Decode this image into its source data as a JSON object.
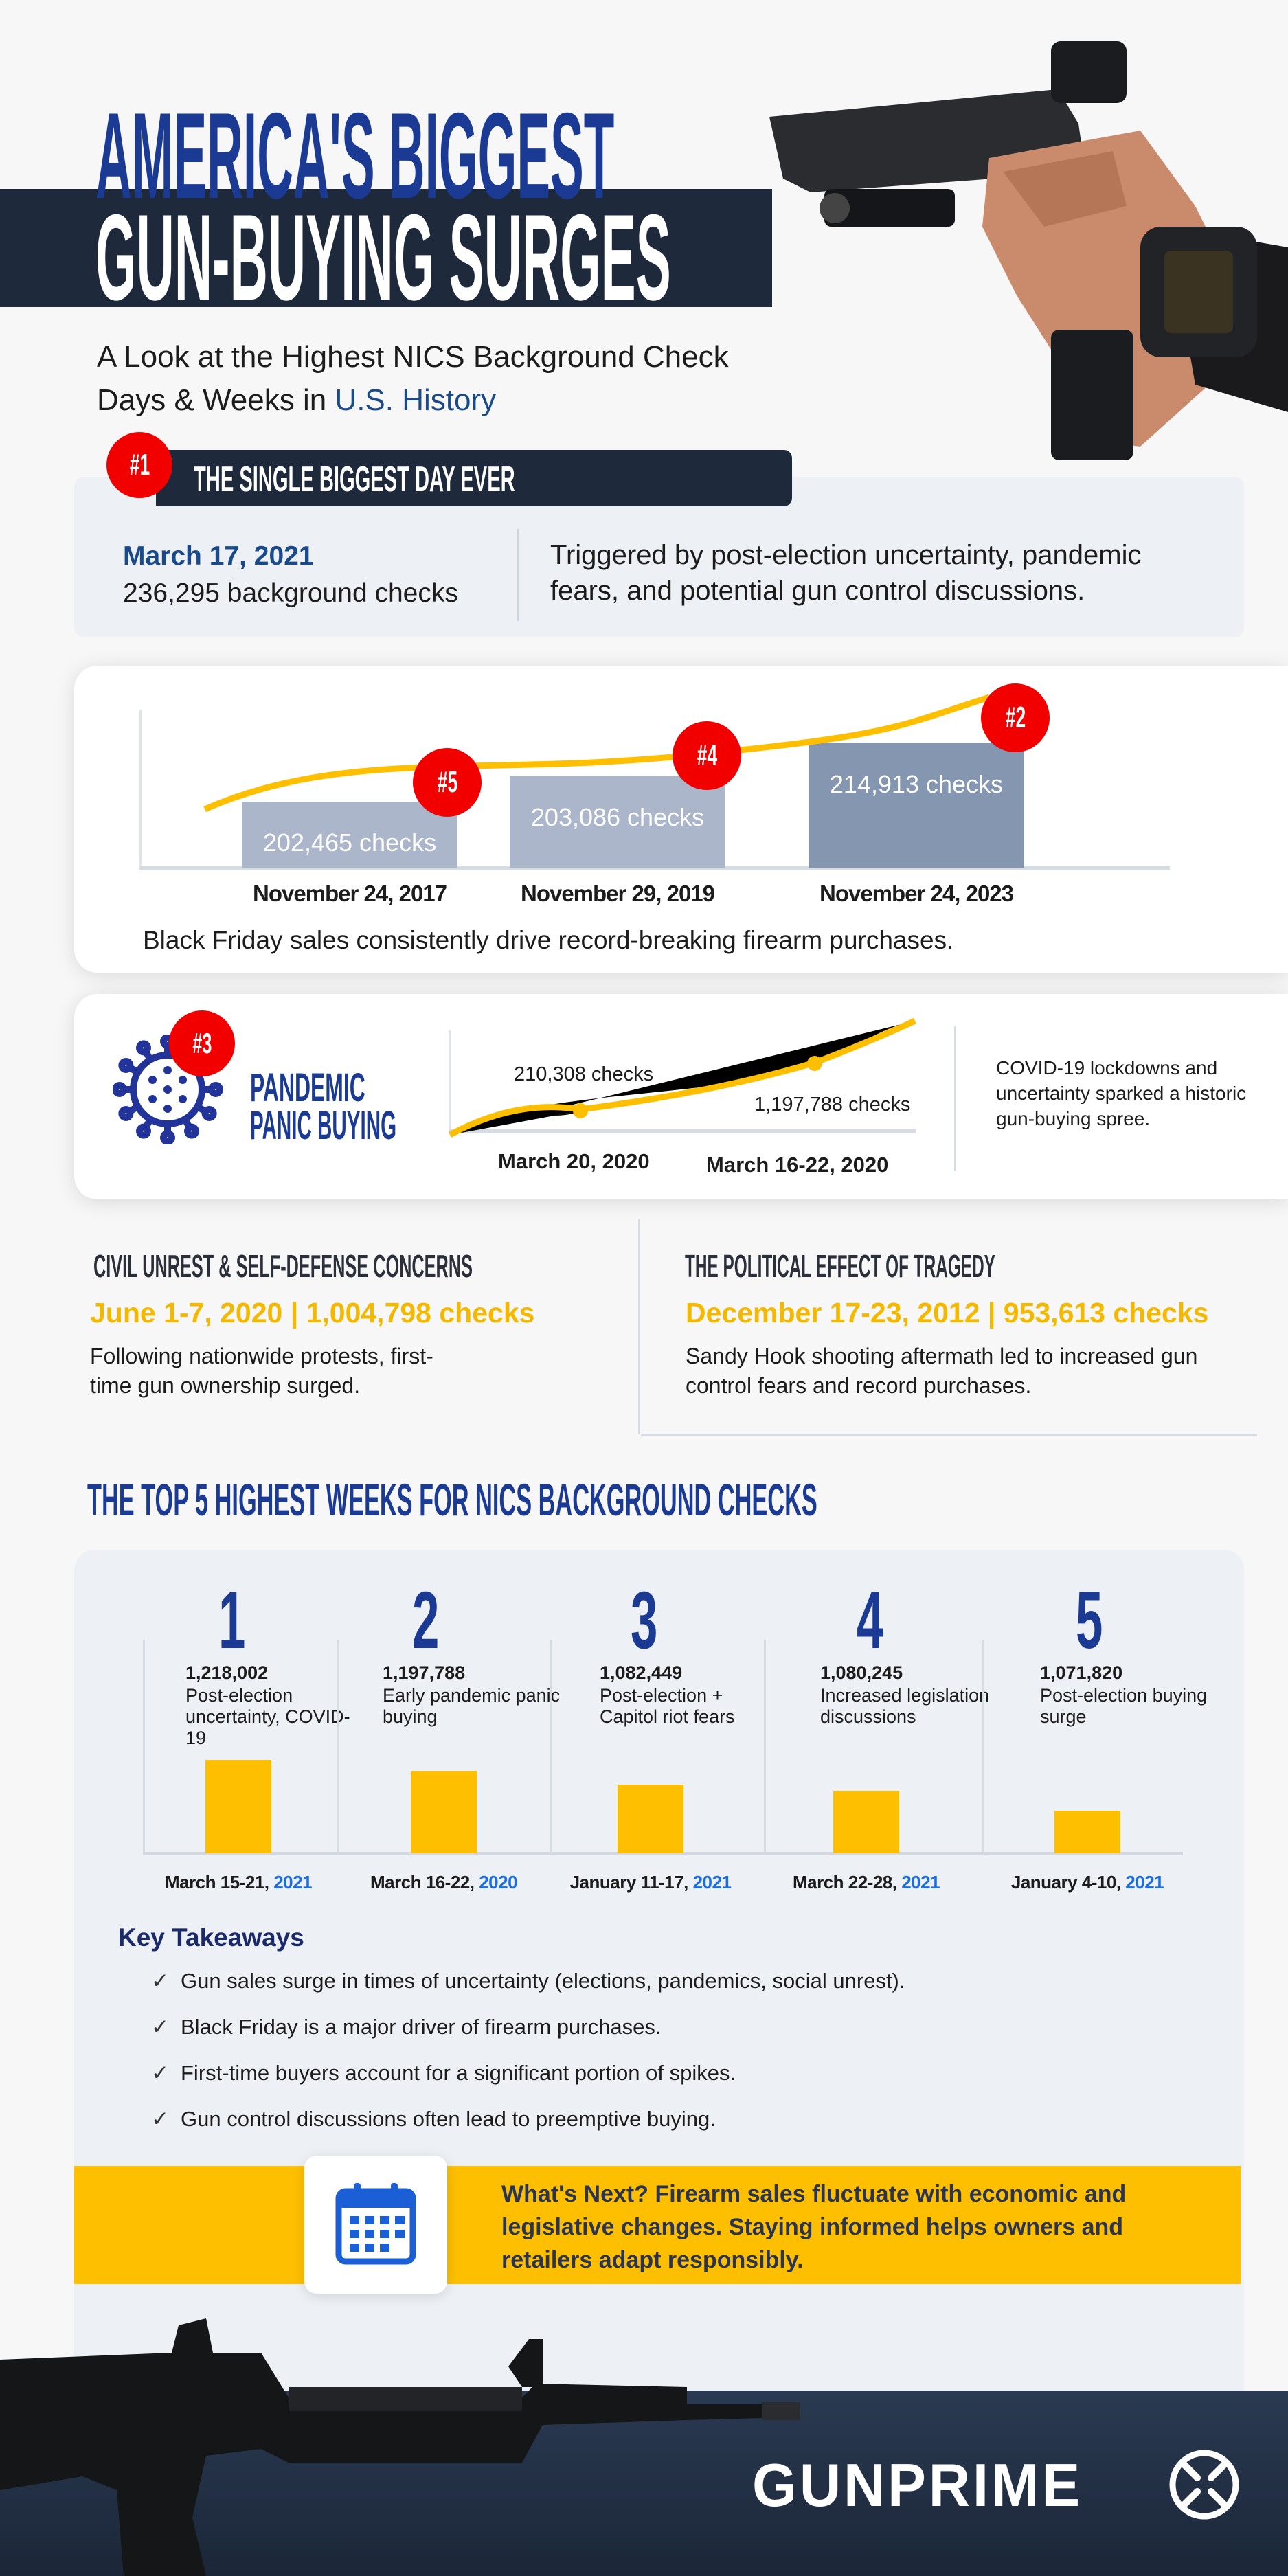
{
  "header": {
    "title_line1": "AMERICA'S BIGGEST",
    "title_line2": "GUN-BUYING SURGES",
    "subtitle_line1": "A Look at the Highest NICS Background Check",
    "subtitle_line2_prefix": "Days & Weeks in ",
    "subtitle_line2_highlight": "U.S. History"
  },
  "biggest_day": {
    "badge": "#1",
    "heading": "THE SINGLE BIGGEST DAY EVER",
    "date": "March 17, 2021",
    "checks": "236,295 background checks",
    "description": "Triggered by post-election uncertainty, pandemic fears, and potential gun control discussions."
  },
  "black_friday": {
    "bars": [
      {
        "badge": "#5",
        "label": "202,465  checks",
        "value": 202465,
        "date": "November 24, 2017"
      },
      {
        "badge": "#4",
        "label": "203,086 checks",
        "value": 203086,
        "date": "November 29, 2019"
      },
      {
        "badge": "#2",
        "label": "214,913 checks",
        "value": 214913,
        "date": "November 24, 2023"
      }
    ],
    "caption": "Black Friday sales consistently drive record-breaking firearm purchases."
  },
  "pandemic": {
    "badge": "#3",
    "title_line1": "PANDEMIC",
    "title_line2": "PANIC BUYING",
    "point1_label": "210,308 checks",
    "point1_date": "March 20, 2020",
    "point2_label": "1,197,788 checks",
    "point2_date": "March 16-22, 2020",
    "description": "COVID-19 lockdowns and uncertainty sparked a historic gun-buying spree."
  },
  "civil_unrest": {
    "heading": "CIVIL UNREST & SELF-DEFENSE CONCERNS",
    "stat": "June 1-7, 2020 | 1,004,798 checks",
    "description": "Following nationwide protests, first-time gun ownership surged."
  },
  "tragedy": {
    "heading": "THE POLITICAL EFFECT OF TRAGEDY",
    "stat": "December 17-23, 2012 | 953,613 checks",
    "description": "Sandy Hook shooting aftermath led to increased gun control fears and record purchases."
  },
  "top5": {
    "heading": "THE TOP 5 HIGHEST WEEKS FOR NICS BACKGROUND CHECKS",
    "weeks": [
      {
        "rank": "1",
        "checks": "1,218,002",
        "value": 1218002,
        "reason": "Post-election uncertainty, COVID-19",
        "dates": "March 15-21, ",
        "year": "2021"
      },
      {
        "rank": "2",
        "checks": "1,197,788",
        "value": 1197788,
        "reason": "Early pandemic panic buying",
        "dates": "March 16-22, ",
        "year": "2020"
      },
      {
        "rank": "3",
        "checks": "1,082,449",
        "value": 1082449,
        "reason": "Post-election + Capitol riot fears",
        "dates": "January 11-17, ",
        "year": "2021"
      },
      {
        "rank": "4",
        "checks": "1,080,245",
        "value": 1080245,
        "reason": "Increased legislation discussions",
        "dates": "March 22-28, ",
        "year": "2021"
      },
      {
        "rank": "5",
        "checks": "1,071,820",
        "value": 1071820,
        "reason": "Post-election buying surge",
        "dates": "January 4-10, ",
        "year": "2021"
      }
    ]
  },
  "takeaways": {
    "heading": "Key Takeaways",
    "items": [
      "Gun sales surge in times of uncertainty (elections, pandemics, social unrest).",
      "Black Friday is a major driver of firearm purchases.",
      "First-time buyers account for a significant portion of spikes.",
      "Gun control discussions often lead to preemptive buying."
    ]
  },
  "whats_next": {
    "icon": "calendar-icon",
    "text": "What's Next? Firearm sales fluctuate with economic and legislative changes. Staying informed helps owners and retailers adapt responsibly."
  },
  "footer": {
    "logo": "GUNPRIME"
  },
  "colors": {
    "navy": "#1a3a94",
    "dark": "#1e2a3c",
    "red": "#f20000",
    "yellow": "#fdbf00",
    "bar_light": "#abb6ca",
    "bar_dark": "#8596b0",
    "year_blue": "#1a6ee0"
  }
}
